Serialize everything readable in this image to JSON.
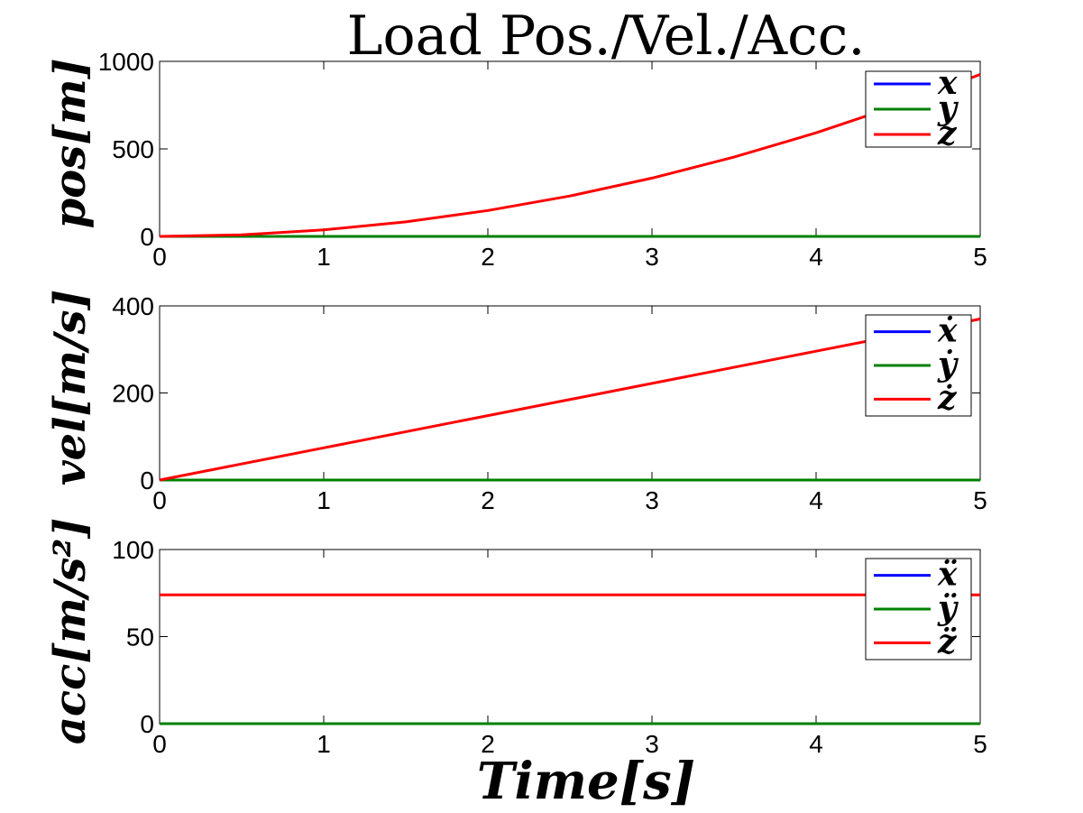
{
  "chart_data": [
    {
      "type": "line",
      "title": "Load Pos./Vel./Acc.",
      "xlabel": "",
      "ylabel": "pos[m]",
      "xlim": [
        0,
        5
      ],
      "ylim": [
        0,
        1000
      ],
      "xticks": [
        0,
        1,
        2,
        3,
        4,
        5
      ],
      "yticks": [
        0,
        500,
        1000
      ],
      "legend": [
        "x",
        "y",
        "z"
      ],
      "legend_position": "top-right",
      "grid": false,
      "x": [
        0,
        0.5,
        1,
        1.5,
        2,
        2.5,
        3,
        3.5,
        4,
        4.5,
        5
      ],
      "series": [
        {
          "name": "x",
          "color": "#0000ff",
          "values": [
            0,
            0,
            0,
            0,
            0,
            0,
            0,
            0,
            0,
            0,
            0
          ]
        },
        {
          "name": "y",
          "color": "#008000",
          "values": [
            0,
            0,
            0,
            0,
            0,
            0,
            0,
            0,
            0,
            0,
            0
          ]
        },
        {
          "name": "z",
          "color": "#ff0000",
          "values": [
            0,
            9,
            37,
            83,
            148,
            231,
            333,
            453,
            592,
            749,
            925
          ]
        }
      ]
    },
    {
      "type": "line",
      "title": "",
      "xlabel": "",
      "ylabel": "vel[m/s]",
      "xlim": [
        0,
        5
      ],
      "ylim": [
        0,
        400
      ],
      "xticks": [
        0,
        1,
        2,
        3,
        4,
        5
      ],
      "yticks": [
        0,
        200,
        400
      ],
      "legend": [
        "ẋ",
        "ẏ",
        "ż"
      ],
      "legend_position": "top-right",
      "grid": false,
      "x": [
        0,
        1,
        2,
        3,
        4,
        5
      ],
      "series": [
        {
          "name": "ẋ",
          "color": "#0000ff",
          "values": [
            0,
            0,
            0,
            0,
            0,
            0
          ]
        },
        {
          "name": "ẏ",
          "color": "#008000",
          "values": [
            0,
            0,
            0,
            0,
            0,
            0
          ]
        },
        {
          "name": "ż",
          "color": "#ff0000",
          "values": [
            0,
            74,
            148,
            222,
            296,
            370
          ]
        }
      ]
    },
    {
      "type": "line",
      "title": "",
      "xlabel": "Time[s]",
      "ylabel": "acc[m/s²]",
      "xlim": [
        0,
        5
      ],
      "ylim": [
        0,
        100
      ],
      "xticks": [
        0,
        1,
        2,
        3,
        4,
        5
      ],
      "yticks": [
        0,
        50,
        100
      ],
      "legend": [
        "ẍ",
        "ÿ",
        "z̈"
      ],
      "legend_position": "top-right",
      "grid": false,
      "x": [
        0,
        5
      ],
      "series": [
        {
          "name": "ẍ",
          "color": "#0000ff",
          "values": [
            0,
            0
          ]
        },
        {
          "name": "ÿ",
          "color": "#008000",
          "values": [
            0,
            0
          ]
        },
        {
          "name": "z̈",
          "color": "#ff0000",
          "values": [
            74,
            74
          ]
        }
      ]
    }
  ]
}
